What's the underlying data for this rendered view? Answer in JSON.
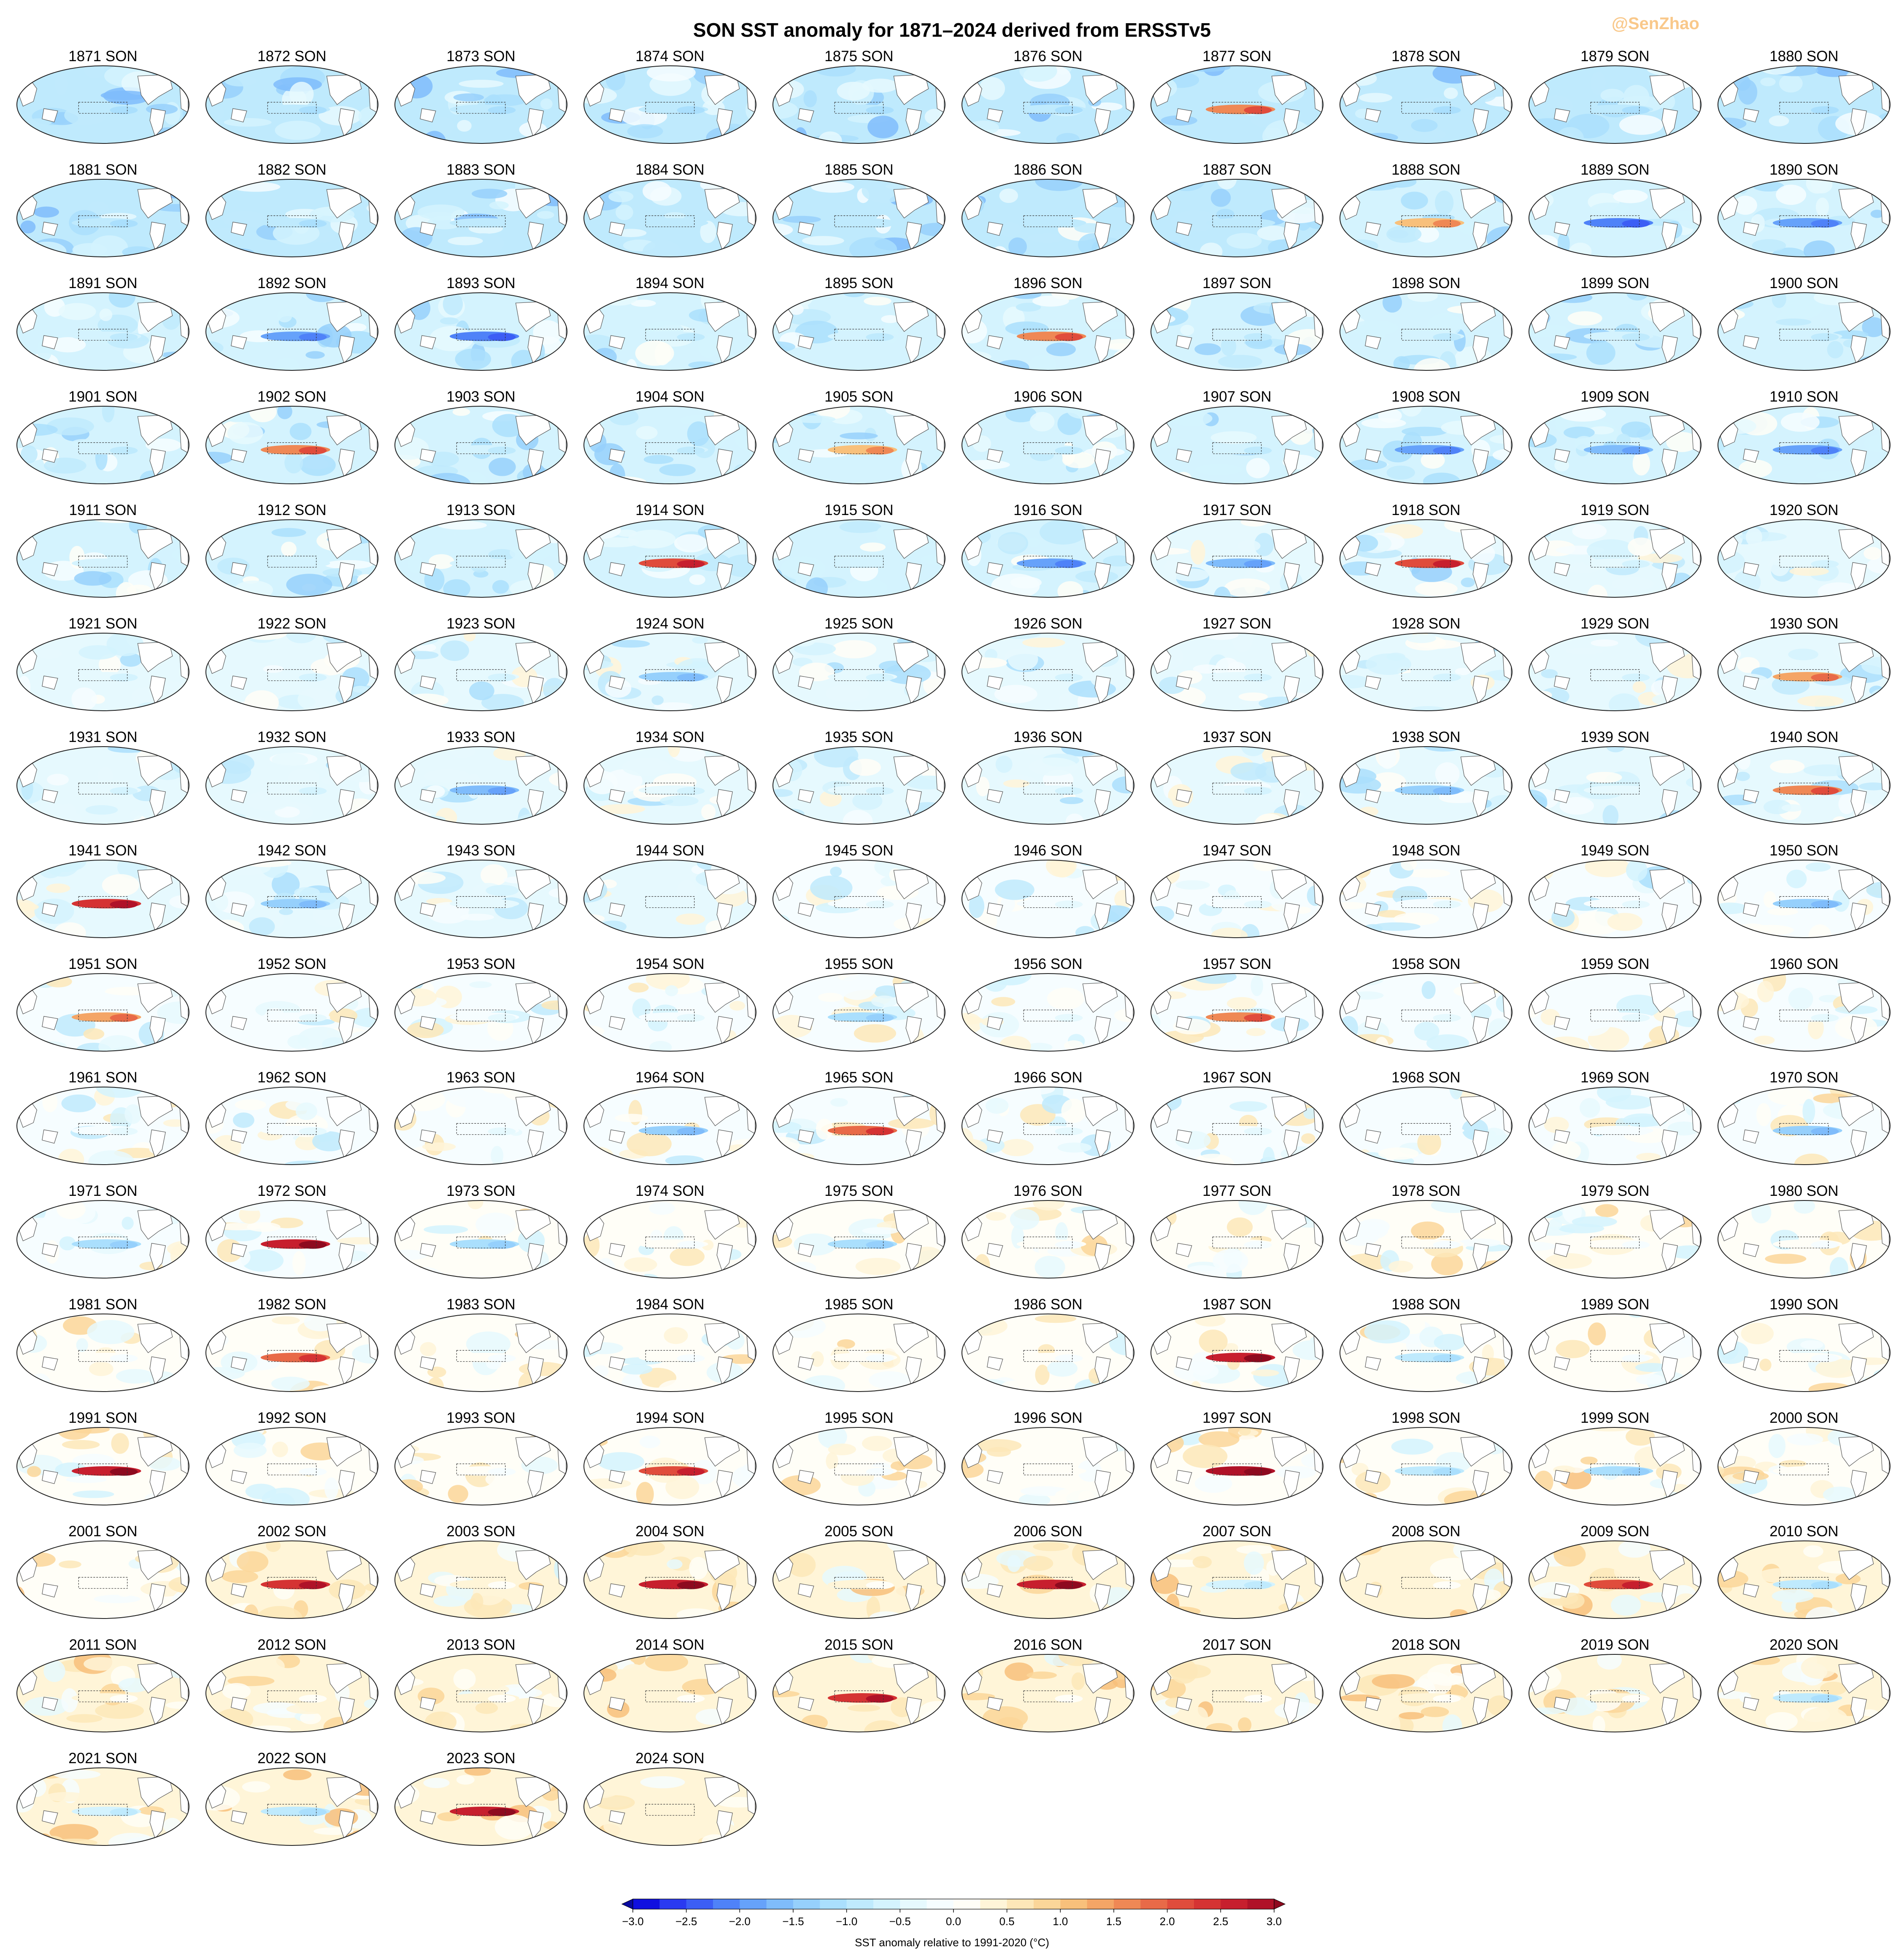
{
  "title": "SON SST anomaly for 1871–2024 derived from ERSSTv5",
  "watermark": "@SenZhao",
  "panels": {
    "year_start": 1871,
    "year_end": 2024,
    "season_suffix": " SON",
    "columns": 10
  },
  "colorbar": {
    "label": "SST anomaly relative to 1991-2020 (°C)",
    "ticks": [
      "−3.0",
      "−2.5",
      "−2.0",
      "−1.5",
      "−1.0",
      "−0.5",
      "0.0",
      "0.5",
      "1.0",
      "1.5",
      "2.0",
      "2.5",
      "3.0"
    ],
    "range": [
      -3.0,
      3.0
    ],
    "step": 0.25,
    "extend": "both",
    "colors": [
      "#1010e0",
      "#2a3af0",
      "#3c5ef5",
      "#4f82f8",
      "#66a2fa",
      "#7fbcfb",
      "#96d0fc",
      "#aadffd",
      "#bfeafd",
      "#d4f3fe",
      "#e6f9fe",
      "#f6fdff",
      "#fffef7",
      "#fff5d8",
      "#fde7b8",
      "#fbd699",
      "#f8c07b",
      "#f4a566",
      "#ef8855",
      "#e86a48",
      "#e04c3c",
      "#d53333",
      "#c71f2e",
      "#b01228"
    ],
    "extend_low": "#0a0aa0",
    "extend_high": "#8e0a1f"
  },
  "strong_events": {
    "warm_nino": [
      1877,
      1888,
      1896,
      1902,
      1905,
      1914,
      1918,
      1930,
      1940,
      1941,
      1951,
      1957,
      1965,
      1972,
      1982,
      1987,
      1991,
      1994,
      1997,
      2002,
      2004,
      2006,
      2009,
      2015,
      2023
    ],
    "cold_nina": [
      1889,
      1890,
      1892,
      1893,
      1908,
      1909,
      1910,
      1916,
      1917,
      1924,
      1933,
      1938,
      1942,
      1950,
      1955,
      1964,
      1970,
      1971,
      1973,
      1975,
      1988,
      1998,
      1999,
      2007,
      2010,
      2020,
      2021,
      2022
    ]
  }
}
